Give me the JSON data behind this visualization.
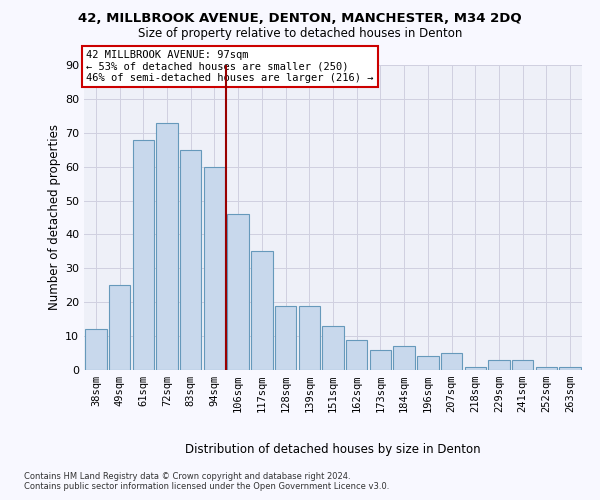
{
  "title1": "42, MILLBROOK AVENUE, DENTON, MANCHESTER, M34 2DQ",
  "title2": "Size of property relative to detached houses in Denton",
  "xlabel": "Distribution of detached houses by size in Denton",
  "ylabel": "Number of detached properties",
  "footer1": "Contains HM Land Registry data © Crown copyright and database right 2024.",
  "footer2": "Contains public sector information licensed under the Open Government Licence v3.0.",
  "categories": [
    "38sqm",
    "49sqm",
    "61sqm",
    "72sqm",
    "83sqm",
    "94sqm",
    "106sqm",
    "117sqm",
    "128sqm",
    "139sqm",
    "151sqm",
    "162sqm",
    "173sqm",
    "184sqm",
    "196sqm",
    "207sqm",
    "218sqm",
    "229sqm",
    "241sqm",
    "252sqm",
    "263sqm"
  ],
  "actual_bars": [
    12,
    25,
    68,
    73,
    65,
    60,
    46,
    35,
    19,
    19,
    13,
    9,
    6,
    7,
    4,
    5,
    1,
    3,
    3,
    1,
    1
  ],
  "annotation_line1": "42 MILLBROOK AVENUE: 97sqm",
  "annotation_line2": "← 53% of detached houses are smaller (250)",
  "annotation_line3": "46% of semi-detached houses are larger (216) →",
  "vline_index": 5.5,
  "bar_color": "#c8d8ec",
  "bar_edge_color": "#6699bb",
  "vline_color": "#990000",
  "grid_color": "#d0d0e0",
  "plot_bg": "#eef0f8",
  "fig_bg": "#f8f8ff",
  "ylim_max": 90,
  "yticks": [
    0,
    10,
    20,
    30,
    40,
    50,
    60,
    70,
    80,
    90
  ],
  "title1_fontsize": 9.5,
  "title2_fontsize": 8.5,
  "ylabel_fontsize": 8.5,
  "xlabel_fontsize": 8.5,
  "tick_fontsize": 8,
  "xtick_fontsize": 7.5,
  "footer_fontsize": 6.0,
  "ann_fontsize": 7.5
}
